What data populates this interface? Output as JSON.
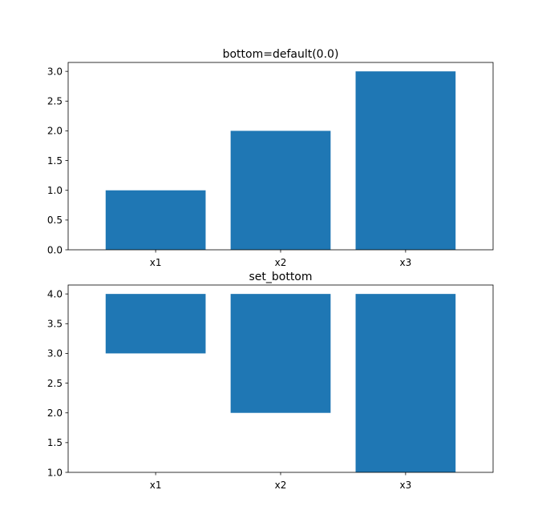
{
  "chart_data": [
    {
      "type": "bar",
      "title": "bottom=default(0.0)",
      "xlabel": "",
      "ylabel": "",
      "categories": [
        "x1",
        "x2",
        "x3"
      ],
      "values": [
        1.0,
        2.0,
        3.0
      ],
      "bottom": [
        0.0,
        0.0,
        0.0
      ],
      "ylim": [
        0,
        3.15
      ],
      "yticks": [
        0.0,
        0.5,
        1.0,
        1.5,
        2.0,
        2.5,
        3.0
      ],
      "ytick_labels": [
        "0.0",
        "0.5",
        "1.0",
        "1.5",
        "2.0",
        "2.5",
        "3.0"
      ],
      "color": "#1f77b4",
      "grid": false,
      "legend": "none"
    },
    {
      "type": "bar",
      "title": "set_bottom",
      "xlabel": "",
      "ylabel": "",
      "categories": [
        "x1",
        "x2",
        "x3"
      ],
      "values": [
        1.0,
        2.0,
        3.0
      ],
      "bottom": [
        3.0,
        2.0,
        1.0
      ],
      "ylim": [
        1.0,
        4.15
      ],
      "yticks": [
        1.0,
        1.5,
        2.0,
        2.5,
        3.0,
        3.5,
        4.0
      ],
      "ytick_labels": [
        "1.0",
        "1.5",
        "2.0",
        "2.5",
        "3.0",
        "3.5",
        "4.0"
      ],
      "color": "#1f77b4",
      "grid": false,
      "legend": "none"
    }
  ]
}
